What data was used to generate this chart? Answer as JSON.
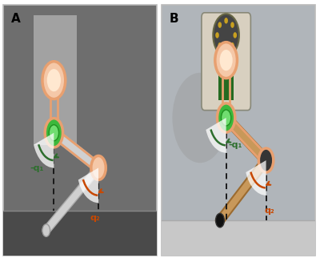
{
  "figsize": [
    4.0,
    3.22
  ],
  "dpi": 100,
  "panel_A_label": "A",
  "panel_B_label": "B",
  "label_fontsize": 11,
  "label_fontweight": "bold",
  "label_color": "black",
  "annotation_q1": "-q₁",
  "annotation_q2": "q₂",
  "annotation_color_green": "#2d6e2d",
  "annotation_color_orange": "#c84800",
  "border_color": "#bbbbbb",
  "border_linewidth": 1.2,
  "panel_A_bg_top": "#7a7a7a",
  "panel_A_bg_bot": "#4a4a4a",
  "panel_B_bg": "#b8b8b8",
  "orange_belt_color": "#e8a070",
  "green_joint_color": "#3aaa3a",
  "peach_joint_color": "#f5c8a8",
  "gray_link_color": "#c8c8c8",
  "dashed_line_color": "#111111",
  "figure_bg": "white",
  "wall_color": "#b0b0b0",
  "floor_A_color": "#585858",
  "wood_color": "#9b6b30",
  "wood_light": "#c8985a"
}
